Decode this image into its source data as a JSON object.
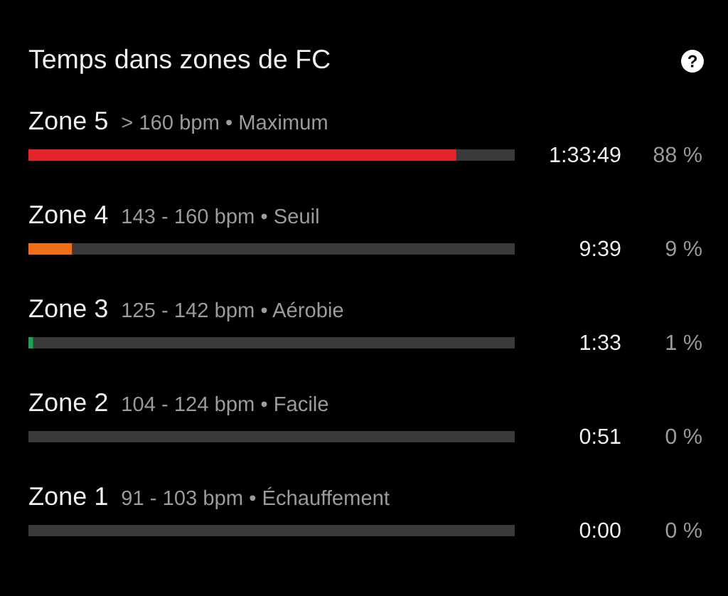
{
  "chart_data": {
    "type": "bar",
    "orientation": "horizontal",
    "stacked": true,
    "title": "Temps dans zones de FC",
    "categories": [
      "Zone 5",
      "Zone 4",
      "Zone 3",
      "Zone 2",
      "Zone 1"
    ],
    "series": [
      {
        "colors": [
          "#e4262c",
          "#f26f1a",
          "#21a150",
          "#3a3a3c",
          "#3a3a3c"
        ],
        "values": [
          88,
          9,
          1,
          0,
          0
        ],
        "value_labels": [
          "88 %",
          "9 %",
          "1 %",
          "0 %",
          "0 %"
        ]
      },
      {
        "color": "#3a3a3c",
        "values": [
          12,
          91,
          99,
          100,
          100
        ]
      }
    ],
    "xlim": [
      0,
      100
    ],
    "tick_labels": "y",
    "annotations": [
      "> 160 bpm • Maximum",
      "143 - 160 bpm • Seuil",
      "125 - 142 bpm • Aérobie",
      "104 - 124 bpm • Facile",
      "91 - 103 bpm • Échauffement",
      "1:33:49",
      "9:39",
      "1:33",
      "0:51",
      "0:00"
    ]
  }
}
